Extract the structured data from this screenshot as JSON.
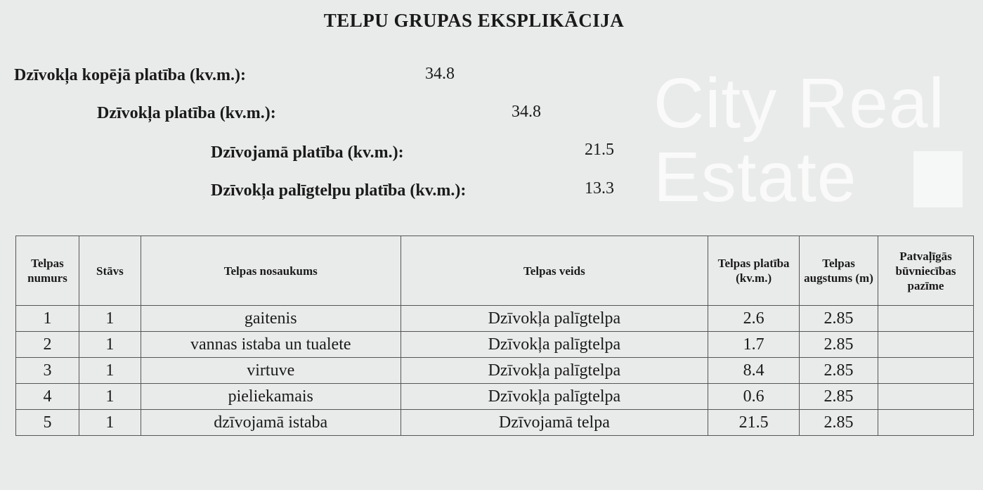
{
  "title": "TELPU GRUPAS EKSPLIKĀCIJA",
  "summary": [
    {
      "label": "Dzīvokļa kopējā platība (kv.m.):",
      "value": "34.8"
    },
    {
      "label": "Dzīvokļa platība (kv.m.):",
      "value": "34.8"
    },
    {
      "label": "Dzīvojamā platība (kv.m.):",
      "value": "21.5"
    },
    {
      "label": "Dzīvokļa palīgtelpu platība (kv.m.):",
      "value": "13.3"
    }
  ],
  "watermark": "City Real Estate",
  "table": {
    "headers": [
      "Telpas numurs",
      "Stāvs",
      "Telpas nosaukums",
      "Telpas veids",
      "Telpas platība (kv.m.)",
      "Telpas augstums (m)",
      "Patvaļīgās būvniecības pazīme"
    ],
    "rows": [
      [
        "1",
        "1",
        "gaitenis",
        "Dzīvokļa palīgtelpa",
        "2.6",
        "2.85",
        ""
      ],
      [
        "2",
        "1",
        "vannas istaba un tualete",
        "Dzīvokļa palīgtelpa",
        "1.7",
        "2.85",
        ""
      ],
      [
        "3",
        "1",
        "virtuve",
        "Dzīvokļa palīgtelpa",
        "8.4",
        "2.85",
        ""
      ],
      [
        "4",
        "1",
        "pieliekamais",
        "Dzīvokļa palīgtelpa",
        "0.6",
        "2.85",
        ""
      ],
      [
        "5",
        "1",
        "dzīvojamā istaba",
        "Dzīvojamā telpa",
        "21.5",
        "2.85",
        ""
      ]
    ]
  }
}
